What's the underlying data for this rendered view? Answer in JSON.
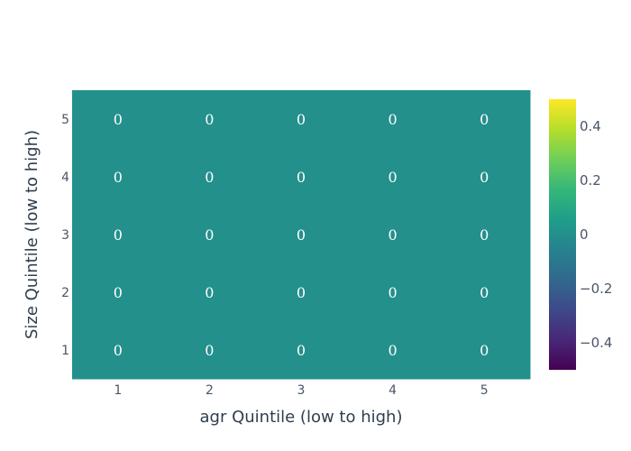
{
  "chart_data": {
    "type": "heatmap",
    "title": "",
    "xlabel": "agr Quintile (low to high)",
    "ylabel": "Size Quintile (low to high)",
    "x_categories": [
      "1",
      "2",
      "3",
      "4",
      "5"
    ],
    "y_categories": [
      "1",
      "2",
      "3",
      "4",
      "5"
    ],
    "z": [
      [
        0,
        0,
        0,
        0,
        0
      ],
      [
        0,
        0,
        0,
        0,
        0
      ],
      [
        0,
        0,
        0,
        0,
        0
      ],
      [
        0,
        0,
        0,
        0,
        0
      ],
      [
        0,
        0,
        0,
        0,
        0
      ]
    ],
    "text": [
      [
        "0",
        "0",
        "0",
        "0",
        "0"
      ],
      [
        "0",
        "0",
        "0",
        "0",
        "0"
      ],
      [
        "0",
        "0",
        "0",
        "0",
        "0"
      ],
      [
        "0",
        "0",
        "0",
        "0",
        "0"
      ],
      [
        "0",
        "0",
        "0",
        "0",
        "0"
      ]
    ],
    "colorscale": "viridis",
    "zmin": -0.5,
    "zmax": 0.5,
    "colorbar_ticks": [
      0.4,
      0.2,
      0,
      -0.2,
      -0.4
    ],
    "colorbar_tick_labels": [
      "0.4",
      "0.2",
      "0",
      "−0.2",
      "−0.4"
    ],
    "colors": {
      "cell": "#21918c",
      "viridis_stops": [
        "#440154",
        "#482878",
        "#3e4989",
        "#31688e",
        "#26828e",
        "#1f9e89",
        "#35b779",
        "#6ece58",
        "#b5de2b",
        "#fde725"
      ]
    }
  }
}
